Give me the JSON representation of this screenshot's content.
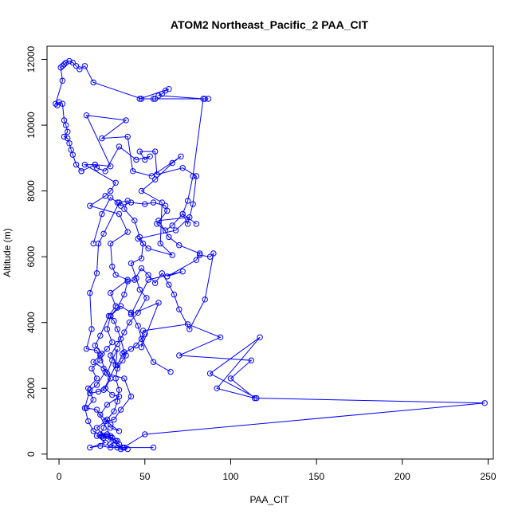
{
  "chart_data": {
    "type": "line",
    "title": "ATOM2 Northeast_Pacific_2 PAA_CIT",
    "xlabel": "PAA_CIT",
    "ylabel": "Altitude (m)",
    "xlim": [
      -7,
      253
    ],
    "ylim": [
      -150,
      12400
    ],
    "xticks": [
      0,
      50,
      100,
      150,
      200,
      250
    ],
    "yticks": [
      0,
      2000,
      4000,
      6000,
      8000,
      10000,
      12000
    ],
    "color": "#0000ff",
    "series": [
      {
        "points": [
          [
            38,
            200
          ],
          [
            55,
            200
          ],
          [
            30,
            200
          ],
          [
            24,
            250
          ],
          [
            18,
            200
          ],
          [
            27,
            350
          ],
          [
            22,
            550
          ],
          [
            28,
            600
          ],
          [
            36,
            150
          ],
          [
            50,
            600
          ],
          [
            248,
            1550
          ],
          [
            115,
            1700
          ],
          [
            88,
            2450
          ],
          [
            117,
            3550
          ],
          [
            92,
            2000
          ],
          [
            114,
            1700
          ],
          [
            100,
            2300
          ],
          [
            112,
            2850
          ],
          [
            70,
            3000
          ],
          [
            94,
            3550
          ],
          [
            75,
            3950
          ],
          [
            49,
            3750
          ],
          [
            48,
            3250
          ],
          [
            58,
            4600
          ],
          [
            42,
            4250
          ],
          [
            52,
            5300
          ],
          [
            72,
            5550
          ],
          [
            63,
            5400
          ],
          [
            80,
            5900
          ],
          [
            82,
            6100
          ],
          [
            70,
            6350
          ],
          [
            64,
            6600
          ],
          [
            58,
            7100
          ],
          [
            76,
            7200
          ],
          [
            68,
            6800
          ],
          [
            46,
            6550
          ],
          [
            52,
            6250
          ],
          [
            66,
            6050
          ],
          [
            59,
            6400
          ],
          [
            60,
            7650
          ],
          [
            48,
            8000
          ],
          [
            56,
            8350
          ],
          [
            66,
            8850
          ],
          [
            71,
            9050
          ],
          [
            54,
            8450
          ],
          [
            43,
            8600
          ],
          [
            40,
            9650
          ],
          [
            25,
            9600
          ],
          [
            39,
            10150
          ],
          [
            16,
            10300
          ],
          [
            30,
            8750
          ],
          [
            21,
            8800
          ],
          [
            15,
            8800
          ],
          [
            33,
            8250
          ],
          [
            30,
            8000
          ],
          [
            27,
            7850
          ],
          [
            18,
            7550
          ],
          [
            35,
            7300
          ],
          [
            40,
            6750
          ],
          [
            30,
            6400
          ],
          [
            31,
            5700
          ],
          [
            33,
            5450
          ],
          [
            40,
            5300
          ],
          [
            30,
            4900
          ],
          [
            33,
            4500
          ],
          [
            29,
            4200
          ],
          [
            24,
            3600
          ],
          [
            21,
            3300
          ],
          [
            25,
            3050
          ],
          [
            20,
            2800
          ],
          [
            26,
            2600
          ],
          [
            30,
            2300
          ],
          [
            27,
            2000
          ],
          [
            31,
            1800
          ],
          [
            35,
            1750
          ],
          [
            28,
            1500
          ],
          [
            24,
            1200
          ],
          [
            30,
            900
          ],
          [
            35,
            700
          ],
          [
            30,
            800
          ]
        ]
      },
      {
        "points": [
          [
            18,
            1850
          ],
          [
            23,
            1900
          ],
          [
            26,
            1950
          ],
          [
            33,
            2700
          ],
          [
            34,
            3200
          ],
          [
            31,
            2850
          ],
          [
            28,
            2450
          ],
          [
            38,
            2300
          ],
          [
            42,
            1750
          ],
          [
            36,
            1350
          ],
          [
            32,
            1050
          ],
          [
            27,
            1000
          ],
          [
            22,
            800
          ],
          [
            26,
            550
          ],
          [
            30,
            550
          ],
          [
            22,
            1350
          ],
          [
            16,
            1400
          ],
          [
            20,
            1650
          ],
          [
            17,
            2000
          ],
          [
            22,
            2300
          ],
          [
            19,
            2600
          ],
          [
            24,
            2850
          ],
          [
            22,
            3150
          ],
          [
            16,
            3200
          ],
          [
            19,
            3800
          ],
          [
            18,
            4900
          ],
          [
            22,
            5500
          ],
          [
            23,
            6400
          ],
          [
            26,
            6700
          ],
          [
            35,
            7650
          ],
          [
            40,
            7700
          ],
          [
            38,
            7450
          ],
          [
            44,
            7100
          ],
          [
            47,
            6600
          ],
          [
            49,
            6400
          ],
          [
            48,
            5950
          ],
          [
            42,
            5800
          ],
          [
            45,
            5350
          ],
          [
            47,
            5000
          ],
          [
            51,
            4750
          ],
          [
            46,
            4300
          ],
          [
            41,
            4000
          ],
          [
            38,
            3700
          ],
          [
            34,
            3350
          ],
          [
            30,
            3000
          ],
          [
            34,
            2700
          ],
          [
            37,
            3050
          ],
          [
            42,
            3200
          ],
          [
            45,
            3300
          ],
          [
            50,
            3650
          ]
        ]
      },
      {
        "points": [
          [
            65,
            2500
          ],
          [
            55,
            2800
          ],
          [
            48,
            3500
          ],
          [
            46,
            3900
          ],
          [
            42,
            4300
          ],
          [
            36,
            4500
          ],
          [
            30,
            4200
          ],
          [
            28,
            3800
          ],
          [
            31,
            3400
          ],
          [
            28,
            3200
          ],
          [
            24,
            3000
          ],
          [
            27,
            2500
          ],
          [
            22,
            2100
          ],
          [
            18,
            1950
          ],
          [
            15,
            1400
          ],
          [
            17,
            1000
          ],
          [
            20,
            700
          ],
          [
            25,
            550
          ],
          [
            30,
            500
          ],
          [
            34,
            400
          ],
          [
            30,
            300
          ],
          [
            34,
            200
          ],
          [
            38,
            200
          ],
          [
            40,
            150
          ]
        ]
      },
      {
        "points": [
          [
            20,
            6400
          ],
          [
            25,
            7300
          ],
          [
            30,
            7800
          ],
          [
            34,
            7650
          ],
          [
            36,
            7550
          ],
          [
            42,
            7650
          ],
          [
            50,
            7600
          ],
          [
            55,
            7650
          ],
          [
            62,
            7550
          ],
          [
            63,
            7400
          ],
          [
            57,
            7000
          ],
          [
            62,
            6800
          ],
          [
            66,
            6950
          ],
          [
            72,
            7300
          ],
          [
            75,
            7000
          ],
          [
            78,
            7600
          ],
          [
            80,
            8450
          ],
          [
            72,
            8700
          ],
          [
            57,
            8500
          ],
          [
            56,
            9200
          ],
          [
            47,
            9200
          ],
          [
            50,
            8950
          ],
          [
            53,
            9050
          ],
          [
            45,
            8950
          ],
          [
            35,
            9350
          ],
          [
            27,
            8600
          ],
          [
            22,
            8700
          ],
          [
            21,
            8800
          ],
          [
            13,
            8600
          ]
        ]
      },
      {
        "points": [
          [
            13,
            8600
          ],
          [
            10,
            8800
          ],
          [
            8,
            9100
          ],
          [
            7,
            9250
          ],
          [
            6,
            9450
          ],
          [
            5,
            9600
          ],
          [
            3,
            9650
          ],
          [
            5,
            9800
          ],
          [
            4,
            10000
          ],
          [
            3,
            10150
          ],
          [
            2,
            10650
          ],
          [
            0,
            10700
          ],
          [
            -1,
            10600
          ],
          [
            -2,
            10650
          ],
          [
            2,
            11350
          ],
          [
            1,
            11750
          ],
          [
            3,
            11850
          ],
          [
            2,
            11800
          ],
          [
            4,
            11900
          ],
          [
            6,
            11950
          ],
          [
            8,
            11900
          ],
          [
            10,
            11800
          ],
          [
            12,
            11700
          ],
          [
            15,
            11800
          ],
          [
            20,
            11300
          ],
          [
            48,
            10800
          ],
          [
            56,
            10800
          ],
          [
            85,
            10800
          ],
          [
            87,
            10800
          ],
          [
            55,
            10800
          ],
          [
            47,
            10800
          ],
          [
            64,
            11100
          ],
          [
            62,
            11050
          ],
          [
            60,
            10950
          ],
          [
            58,
            10900
          ],
          [
            84,
            10800
          ],
          [
            78,
            8450
          ],
          [
            75,
            7700
          ],
          [
            72,
            7300
          ],
          [
            80,
            7000
          ]
        ]
      },
      {
        "points": [
          [
            82,
            6050
          ],
          [
            88,
            6000
          ],
          [
            90,
            6100
          ],
          [
            85,
            4700
          ],
          [
            76,
            3800
          ],
          [
            70,
            4400
          ],
          [
            67,
            4850
          ],
          [
            64,
            5150
          ],
          [
            60,
            5500
          ],
          [
            56,
            5200
          ],
          [
            52,
            5450
          ],
          [
            48,
            5650
          ],
          [
            44,
            5300
          ],
          [
            40,
            5250
          ],
          [
            38,
            4850
          ],
          [
            34,
            4450
          ],
          [
            30,
            4200
          ],
          [
            32,
            4050
          ],
          [
            34,
            3800
          ],
          [
            36,
            3500
          ],
          [
            38,
            3100
          ],
          [
            39,
            3000
          ],
          [
            37,
            2850
          ],
          [
            34,
            2600
          ],
          [
            33,
            2300
          ],
          [
            35,
            1950
          ],
          [
            34,
            1600
          ],
          [
            32,
            1300
          ],
          [
            28,
            1050
          ],
          [
            26,
            800
          ],
          [
            24,
            600
          ],
          [
            26,
            500
          ],
          [
            28,
            550
          ],
          [
            31,
            500
          ],
          [
            33,
            400
          ],
          [
            35,
            300
          ],
          [
            37,
            200
          ]
        ]
      }
    ]
  }
}
